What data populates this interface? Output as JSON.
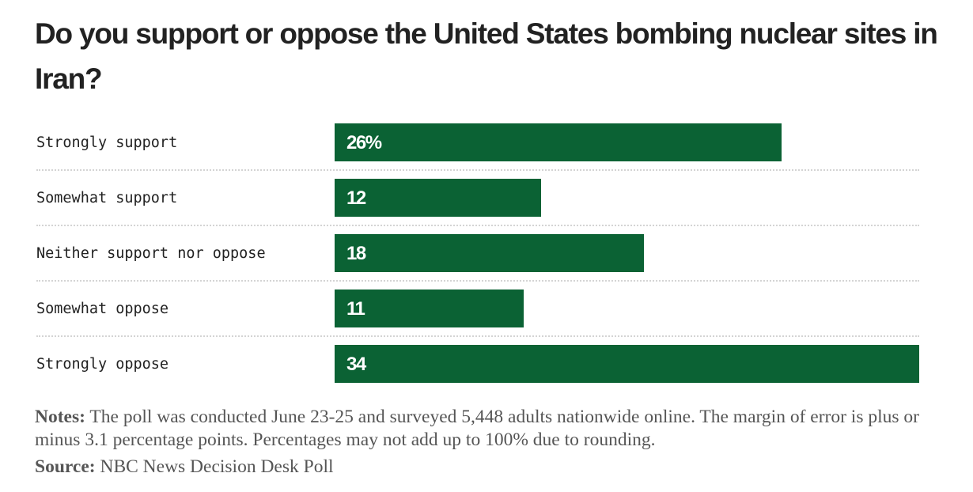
{
  "chart_data": {
    "type": "bar",
    "orientation": "horizontal",
    "title": "Do you support or oppose the United States bombing nuclear sites in Iran?",
    "categories": [
      "Strongly support",
      "Somewhat support",
      "Neither support nor oppose",
      "Somewhat oppose",
      "Strongly oppose"
    ],
    "values": [
      26,
      12,
      18,
      11,
      34
    ],
    "value_labels": [
      "26%",
      "12",
      "18",
      "11",
      "34"
    ],
    "unit": "%",
    "xlim": [
      0,
      34
    ],
    "color": "#0b6234"
  },
  "notes": {
    "label": "Notes:",
    "text": " The poll was conducted June 23-25 and surveyed 5,448 adults nationwide online. The margin of error is plus or minus 3.1 percentage points. Percentages may not add up to 100% due to rounding."
  },
  "source": {
    "label": "Source:",
    "text": " NBC News Decision Desk Poll"
  }
}
